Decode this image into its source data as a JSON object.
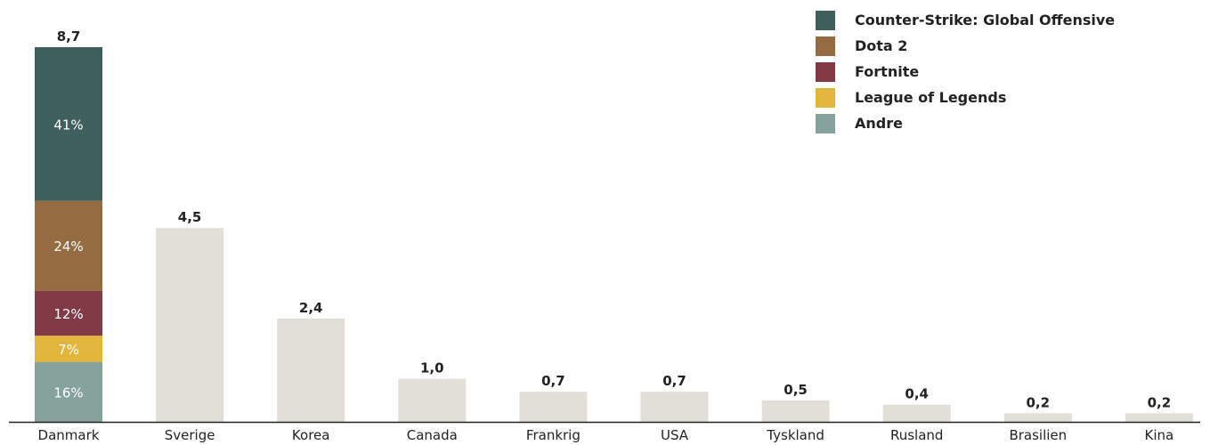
{
  "chart_data": {
    "type": "bar",
    "categories": [
      "Danmark",
      "Sverige",
      "Korea",
      "Canada",
      "Frankrig",
      "USA",
      "Tyskland",
      "Rusland",
      "Brasilien",
      "Kina"
    ],
    "values": [
      8.7,
      4.5,
      2.4,
      1.0,
      0.7,
      0.7,
      0.5,
      0.4,
      0.2,
      0.2
    ],
    "value_labels": [
      "8,7",
      "4,5",
      "2,4",
      "1,0",
      "0,7",
      "0,7",
      "0,5",
      "0,4",
      "0,2",
      "0,2"
    ],
    "ylim": [
      0,
      8.7
    ],
    "grid": false,
    "legend_position": "top-right",
    "bar_color": "#e2dfd9",
    "stacked_category": "Danmark",
    "legend": [
      {
        "name": "Counter-Strike: Global Offensive",
        "color": "#3f605d"
      },
      {
        "name": "Dota 2",
        "color": "#956c42"
      },
      {
        "name": "Fortnite",
        "color": "#833a47"
      },
      {
        "name": "League of Legends",
        "color": "#e2b53d"
      },
      {
        "name": "Andre",
        "color": "#85a39b"
      }
    ],
    "stack_segments": [
      {
        "name": "Counter-Strike: Global Offensive",
        "share": 41,
        "label": "41%"
      },
      {
        "name": "Dota 2",
        "share": 24,
        "label": "24%"
      },
      {
        "name": "Fortnite",
        "share": 12,
        "label": "12%"
      },
      {
        "name": "League of Legends",
        "share": 7,
        "label": "7%"
      },
      {
        "name": "Andre",
        "share": 16,
        "label": "16%"
      }
    ]
  }
}
